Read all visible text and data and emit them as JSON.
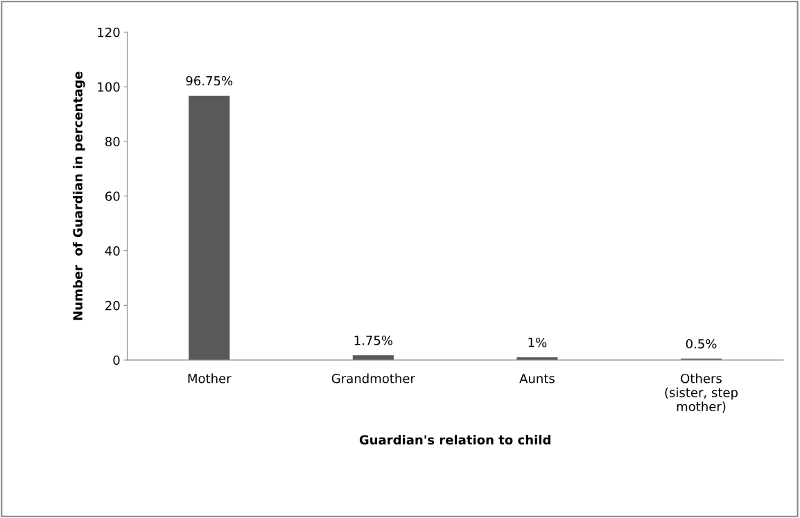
{
  "chart_data": {
    "type": "bar",
    "xlabel": "Guardian's relation to child",
    "ylabel": "Number  of Guardian in percentage",
    "categories": [
      "Mother",
      "Grandmother",
      "Aunts",
      "Others\n(sister, step\nmother)"
    ],
    "values": [
      96.75,
      1.75,
      1,
      0.5
    ],
    "value_labels": [
      "96.75%",
      "1.75%",
      "1%",
      "0.5%"
    ],
    "color": "#595959",
    "ylim": [
      0,
      120
    ],
    "yticks": [
      0,
      20,
      40,
      60,
      80,
      100,
      120
    ],
    "grid": false
  }
}
